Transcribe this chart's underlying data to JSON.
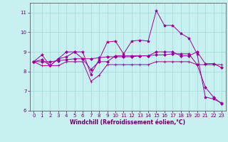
{
  "background_color": "#c8f0f0",
  "grid_color": "#a0d8d8",
  "line_color": "#990099",
  "marker_color": "#990099",
  "xlabel": "Windchill (Refroidissement éolien,°C)",
  "ylim": [
    6,
    11.5
  ],
  "xlim": [
    -0.5,
    23.5
  ],
  "yticks": [
    6,
    7,
    8,
    9,
    10,
    11
  ],
  "xticks": [
    0,
    1,
    2,
    3,
    4,
    5,
    6,
    7,
    8,
    9,
    10,
    11,
    12,
    13,
    14,
    15,
    16,
    17,
    18,
    19,
    20,
    21,
    22,
    23
  ],
  "series1_x": [
    0,
    1,
    2,
    3,
    4,
    5,
    6,
    7,
    8,
    9,
    10,
    11,
    12,
    13,
    14,
    15,
    16,
    17,
    18,
    19,
    20,
    21,
    22,
    23
  ],
  "series1_y": [
    8.5,
    8.85,
    8.3,
    8.65,
    8.75,
    9.0,
    9.0,
    7.85,
    8.6,
    9.5,
    9.55,
    8.9,
    9.55,
    9.6,
    9.55,
    11.1,
    10.35,
    10.35,
    9.95,
    9.7,
    8.9,
    6.7,
    6.6,
    6.4
  ],
  "series2_x": [
    0,
    1,
    2,
    3,
    4,
    5,
    6,
    7,
    8,
    9,
    10,
    11,
    12,
    13,
    14,
    15,
    16,
    17,
    18,
    19,
    20,
    21,
    22,
    23
  ],
  "series2_y": [
    8.5,
    8.3,
    8.3,
    8.3,
    8.5,
    8.5,
    8.5,
    7.5,
    7.8,
    8.35,
    8.35,
    8.35,
    8.35,
    8.35,
    8.35,
    8.5,
    8.5,
    8.5,
    8.5,
    8.5,
    8.35,
    8.35,
    8.35,
    8.35
  ],
  "series3_x": [
    0,
    1,
    2,
    3,
    4,
    5,
    6,
    7,
    8,
    9,
    10,
    11,
    12,
    13,
    14,
    15,
    16,
    17,
    18,
    19,
    20,
    21,
    22,
    23
  ],
  "series3_y": [
    8.5,
    8.6,
    8.3,
    8.65,
    9.0,
    9.0,
    8.65,
    8.1,
    8.5,
    8.5,
    8.8,
    8.8,
    8.8,
    8.8,
    8.8,
    9.0,
    9.0,
    9.0,
    8.8,
    8.8,
    9.0,
    8.4,
    8.4,
    8.2
  ],
  "series4_x": [
    0,
    1,
    2,
    3,
    4,
    5,
    6,
    7,
    8,
    9,
    10,
    11,
    12,
    13,
    14,
    15,
    16,
    17,
    18,
    19,
    20,
    21,
    22,
    23
  ],
  "series4_y": [
    8.5,
    8.5,
    8.5,
    8.55,
    8.6,
    8.65,
    8.65,
    8.65,
    8.7,
    8.75,
    8.75,
    8.75,
    8.75,
    8.8,
    8.8,
    8.85,
    8.85,
    8.9,
    8.9,
    8.9,
    8.35,
    7.2,
    6.7,
    6.35
  ]
}
